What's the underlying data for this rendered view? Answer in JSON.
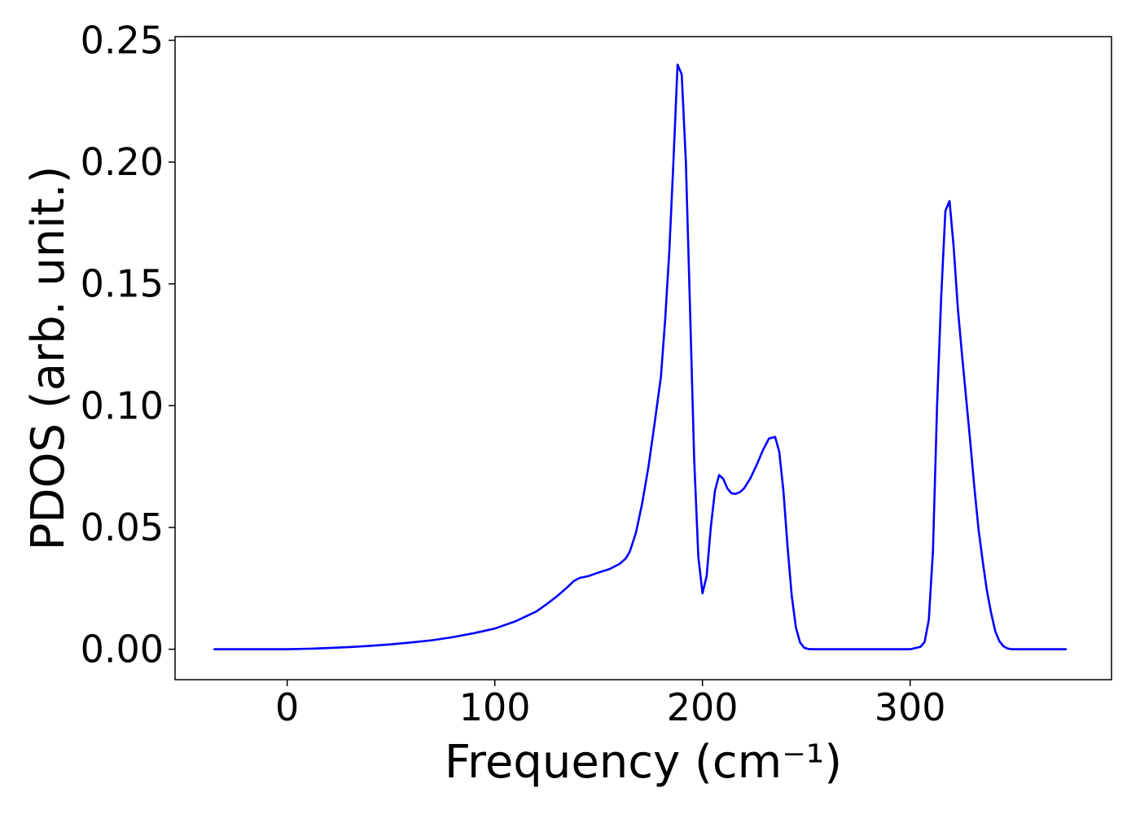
{
  "chart_data": {
    "type": "line",
    "title": "",
    "xlabel": "Frequency (cm⁻¹)",
    "ylabel": "PDOS (arb. unit.)",
    "xlim": [
      -54,
      397
    ],
    "ylim": [
      -0.0125,
      0.2515
    ],
    "xticks": [
      0,
      100,
      200,
      300
    ],
    "xtick_labels": [
      "0",
      "100",
      "200",
      "300"
    ],
    "yticks": [
      0.0,
      0.05,
      0.1,
      0.15,
      0.2,
      0.25
    ],
    "ytick_labels": [
      "0.00",
      "0.05",
      "0.10",
      "0.15",
      "0.20",
      "0.25"
    ],
    "grid": false,
    "legend": "none",
    "series": [
      {
        "color": "#0000ff",
        "x": [
          -35,
          0,
          10,
          20,
          30,
          40,
          50,
          60,
          70,
          80,
          90,
          100,
          110,
          120,
          125,
          130,
          135,
          138,
          141,
          145,
          150,
          155,
          160,
          163,
          165,
          168,
          171,
          174,
          177,
          180,
          182,
          184,
          186,
          188,
          190,
          192,
          194,
          196,
          198,
          200,
          202,
          204,
          206,
          208,
          210,
          212,
          214,
          216,
          218,
          220,
          223,
          226,
          229,
          232,
          235,
          237,
          239,
          241,
          243,
          245,
          247,
          249,
          251,
          253,
          255,
          258,
          300,
          305,
          307,
          309,
          311,
          313,
          315,
          317,
          319,
          321,
          323,
          325,
          327,
          329,
          331,
          333,
          335,
          337,
          339,
          341,
          343,
          345,
          347,
          349,
          352,
          375
        ],
        "y": [
          0.0,
          0.0,
          0.0002,
          0.0005,
          0.0009,
          0.0014,
          0.002,
          0.0028,
          0.0037,
          0.005,
          0.0066,
          0.0085,
          0.0115,
          0.0155,
          0.0185,
          0.0218,
          0.0255,
          0.028,
          0.0293,
          0.03,
          0.0315,
          0.0328,
          0.035,
          0.0372,
          0.04,
          0.048,
          0.06,
          0.075,
          0.093,
          0.112,
          0.135,
          0.163,
          0.2,
          0.24,
          0.236,
          0.2,
          0.14,
          0.078,
          0.038,
          0.023,
          0.03,
          0.05,
          0.065,
          0.0715,
          0.07,
          0.066,
          0.064,
          0.0638,
          0.0645,
          0.066,
          0.07,
          0.0755,
          0.0815,
          0.0865,
          0.0872,
          0.081,
          0.065,
          0.042,
          0.022,
          0.009,
          0.0028,
          0.0006,
          0.0001,
          0.0,
          0.0,
          0.0,
          0.0,
          0.001,
          0.003,
          0.012,
          0.04,
          0.1,
          0.145,
          0.18,
          0.184,
          0.165,
          0.14,
          0.121,
          0.103,
          0.085,
          0.066,
          0.049,
          0.036,
          0.024,
          0.015,
          0.0075,
          0.0033,
          0.0012,
          0.0003,
          0.0,
          0.0,
          0.0
        ]
      }
    ]
  }
}
